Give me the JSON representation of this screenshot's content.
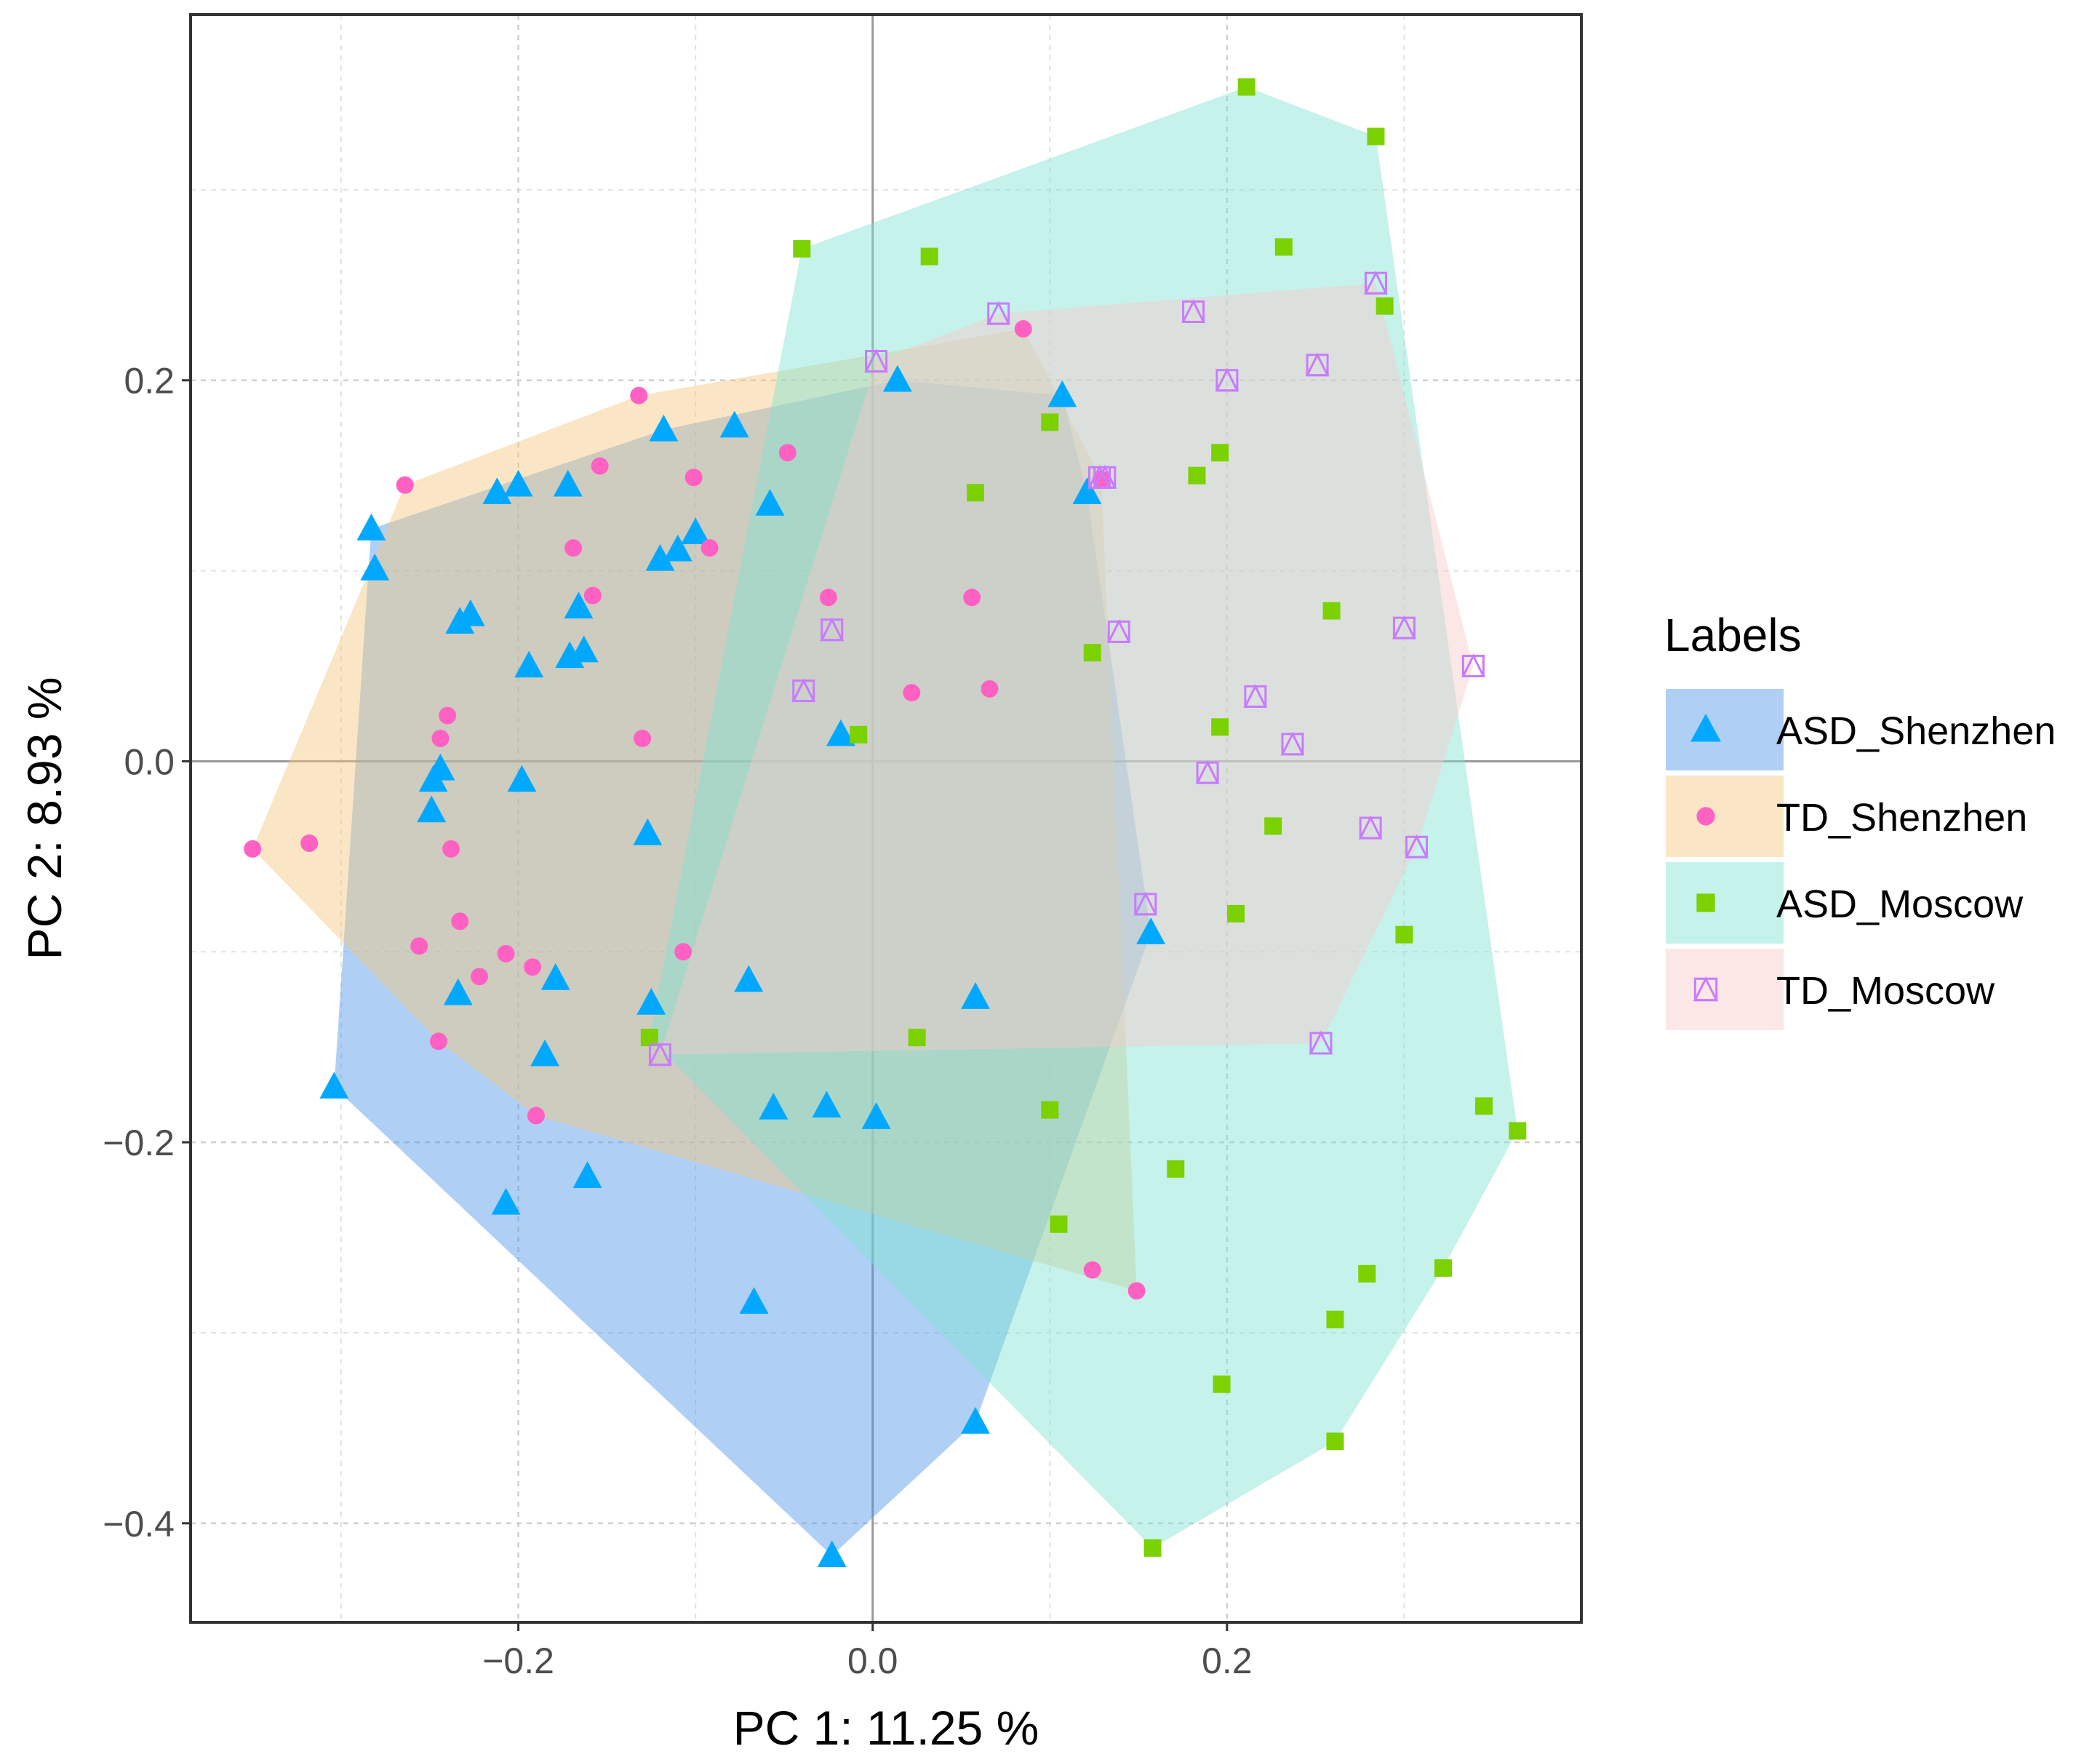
{
  "chart_data": {
    "type": "scatter",
    "title": "",
    "xlabel": "PC 1:  11.25 %",
    "ylabel": "PC 2:  8.93 %",
    "xlim": [
      -0.385,
      0.4
    ],
    "ylim": [
      -0.452,
      0.392
    ],
    "xticks": [
      -0.2,
      0.0,
      0.2
    ],
    "xtick_labels": [
      "−0.2",
      "0.0",
      "0.2"
    ],
    "yticks": [
      -0.4,
      -0.2,
      0.0,
      0.2
    ],
    "ytick_labels": [
      "−0.4",
      "−0.2",
      "0.0",
      "0.2"
    ],
    "grid": true,
    "reference_lines": {
      "x": 0,
      "y": 0
    },
    "legend": {
      "title": "Labels",
      "placement": "right"
    },
    "series": [
      {
        "name": "ASD_Shenzhen",
        "marker": "triangle",
        "color": "#00A9FF",
        "hull_color": "#4F94E9",
        "x": [
          -0.283,
          -0.281,
          -0.212,
          -0.2,
          -0.172,
          -0.118,
          -0.078,
          -0.233,
          -0.227,
          -0.194,
          -0.166,
          -0.171,
          -0.163,
          -0.1,
          -0.12,
          -0.11,
          -0.058,
          0.014,
          0.107,
          0.121,
          -0.018,
          -0.248,
          -0.244,
          -0.249,
          -0.198,
          -0.127,
          0.157,
          -0.234,
          -0.179,
          -0.185,
          -0.125,
          -0.07,
          0.058,
          -0.304,
          -0.056,
          -0.026,
          0.002,
          -0.207,
          -0.161,
          -0.067,
          0.058,
          -0.023
        ],
        "y": [
          0.122,
          0.101,
          0.141,
          0.145,
          0.145,
          0.174,
          0.176,
          0.073,
          0.077,
          0.05,
          0.081,
          0.055,
          0.058,
          0.12,
          0.106,
          0.111,
          0.135,
          0.2,
          0.192,
          0.141,
          0.014,
          -0.01,
          -0.004,
          -0.026,
          -0.01,
          -0.038,
          -0.09,
          -0.122,
          -0.114,
          -0.154,
          -0.127,
          -0.115,
          -0.124,
          -0.171,
          -0.182,
          -0.181,
          -0.187,
          -0.232,
          -0.218,
          -0.284,
          -0.347,
          -0.417
        ]
      },
      {
        "name": "TD_Shenzhen",
        "marker": "circle",
        "color": "#FF61C3",
        "hull_color": "#F5C77E",
        "x": [
          -0.264,
          -0.132,
          -0.154,
          -0.101,
          -0.048,
          -0.169,
          -0.092,
          -0.158,
          -0.24,
          -0.244,
          -0.13,
          -0.025,
          0.056,
          0.085,
          0.022,
          0.066,
          0.129,
          -0.35,
          -0.318,
          -0.238,
          -0.256,
          -0.233,
          -0.207,
          -0.222,
          -0.192,
          -0.107,
          -0.245,
          -0.19,
          0.124,
          0.149
        ],
        "y": [
          0.145,
          0.192,
          0.155,
          0.149,
          0.162,
          0.112,
          0.112,
          0.087,
          0.024,
          0.012,
          0.012,
          0.086,
          0.086,
          0.227,
          0.036,
          0.038,
          0.148,
          -0.046,
          -0.043,
          -0.046,
          -0.097,
          -0.084,
          -0.101,
          -0.113,
          -0.108,
          -0.1,
          -0.147,
          -0.186,
          -0.267,
          -0.278
        ]
      },
      {
        "name": "ASD_Moscow",
        "marker": "square",
        "color": "#7CD100",
        "hull_color": "#7FE3D3",
        "x": [
          0.211,
          0.284,
          -0.04,
          0.032,
          0.232,
          0.289,
          0.1,
          0.058,
          0.196,
          0.183,
          0.259,
          0.124,
          0.196,
          -0.008,
          0.226,
          0.205,
          0.3,
          -0.126,
          0.025,
          0.1,
          0.105,
          0.171,
          0.345,
          0.364,
          0.322,
          0.279,
          0.261,
          0.197,
          0.261,
          0.158
        ],
        "y": [
          0.354,
          0.328,
          0.269,
          0.265,
          0.27,
          0.239,
          0.178,
          0.141,
          0.162,
          0.15,
          0.079,
          0.057,
          0.018,
          0.014,
          -0.034,
          -0.08,
          -0.091,
          -0.145,
          -0.145,
          -0.183,
          -0.243,
          -0.214,
          -0.181,
          -0.194,
          -0.266,
          -0.269,
          -0.293,
          -0.327,
          -0.357,
          -0.413
        ]
      },
      {
        "name": "TD_Moscow",
        "marker": "boxed-triangle",
        "color": "#C77CFF",
        "hull_color": "#F8C9C9",
        "x": [
          0.071,
          0.002,
          0.181,
          0.284,
          0.2,
          0.251,
          0.128,
          0.131,
          -0.023,
          0.139,
          0.3,
          0.339,
          -0.039,
          0.216,
          0.237,
          0.189,
          0.281,
          0.307,
          0.154,
          0.253,
          -0.12
        ],
        "y": [
          0.235,
          0.21,
          0.236,
          0.251,
          0.2,
          0.208,
          0.149,
          0.149,
          0.069,
          0.068,
          0.07,
          0.05,
          0.037,
          0.034,
          0.009,
          -0.006,
          -0.035,
          -0.045,
          -0.075,
          -0.148,
          -0.154
        ]
      }
    ]
  }
}
